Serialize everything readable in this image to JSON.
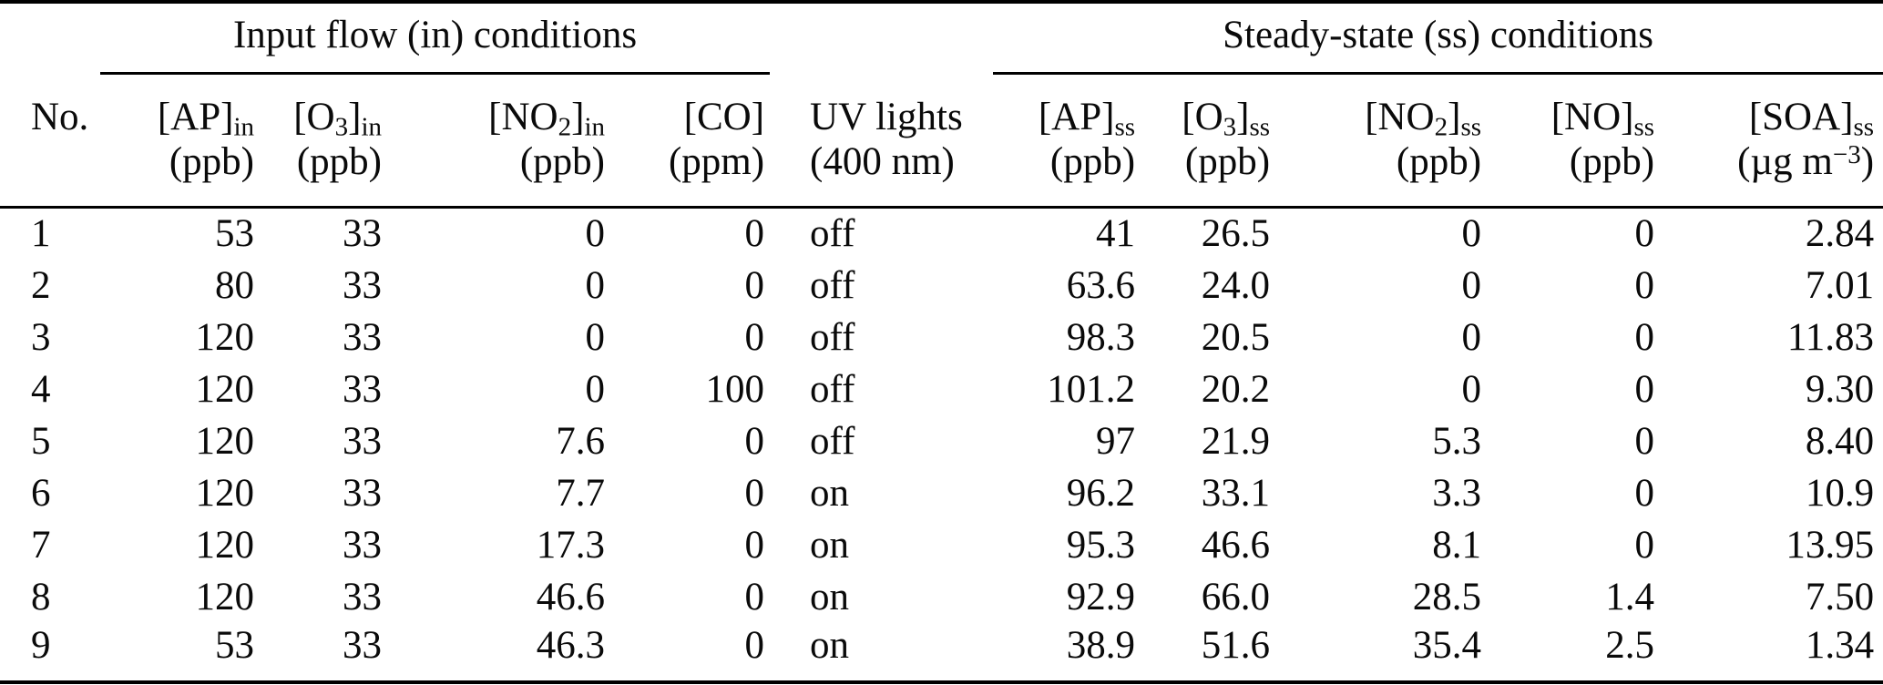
{
  "table": {
    "groups": {
      "input": "Input flow (in) conditions",
      "steady": "Steady-state (ss) conditions"
    },
    "columns": [
      {
        "id": "no",
        "align": "left",
        "group": null,
        "label_parts": [
          {
            "t": "No."
          }
        ],
        "unit_parts": []
      },
      {
        "id": "ap-in",
        "align": "right",
        "group": "input",
        "label_parts": [
          {
            "t": "[AP]"
          },
          {
            "t": "in",
            "sub": true
          }
        ],
        "unit_parts": [
          {
            "t": "(ppb)"
          }
        ]
      },
      {
        "id": "o3-in",
        "align": "right",
        "group": "input",
        "label_parts": [
          {
            "t": "[O"
          },
          {
            "t": "3",
            "sub": true
          },
          {
            "t": "]"
          },
          {
            "t": "in",
            "sub": true
          }
        ],
        "unit_parts": [
          {
            "t": "(ppb)"
          }
        ]
      },
      {
        "id": "no2-in",
        "align": "right",
        "group": "input",
        "label_parts": [
          {
            "t": "[NO"
          },
          {
            "t": "2",
            "sub": true
          },
          {
            "t": "]"
          },
          {
            "t": "in",
            "sub": true
          }
        ],
        "unit_parts": [
          {
            "t": "(ppb)"
          }
        ]
      },
      {
        "id": "co",
        "align": "right",
        "group": "input",
        "label_parts": [
          {
            "t": "[CO]"
          }
        ],
        "unit_parts": [
          {
            "t": "(ppm)"
          }
        ]
      },
      {
        "id": "uv-lights",
        "align": "left",
        "group": null,
        "label_parts": [
          {
            "t": "UV lights"
          }
        ],
        "unit_parts": [
          {
            "t": "(400 nm)"
          }
        ]
      },
      {
        "id": "ap-ss",
        "align": "right",
        "group": "steady",
        "label_parts": [
          {
            "t": "[AP]"
          },
          {
            "t": "ss",
            "sub": true
          }
        ],
        "unit_parts": [
          {
            "t": "(ppb)"
          }
        ]
      },
      {
        "id": "o3-ss",
        "align": "right",
        "group": "steady",
        "label_parts": [
          {
            "t": "[O"
          },
          {
            "t": "3",
            "sub": true
          },
          {
            "t": "]"
          },
          {
            "t": "ss",
            "sub": true
          }
        ],
        "unit_parts": [
          {
            "t": "(ppb)"
          }
        ]
      },
      {
        "id": "no2-ss",
        "align": "right",
        "group": "steady",
        "label_parts": [
          {
            "t": "[NO"
          },
          {
            "t": "2",
            "sub": true
          },
          {
            "t": "]"
          },
          {
            "t": "ss",
            "sub": true
          }
        ],
        "unit_parts": [
          {
            "t": "(ppb)"
          }
        ]
      },
      {
        "id": "no-ss",
        "align": "right",
        "group": "steady",
        "label_parts": [
          {
            "t": "[NO]"
          },
          {
            "t": "ss",
            "sub": true
          }
        ],
        "unit_parts": [
          {
            "t": "(ppb)"
          }
        ]
      },
      {
        "id": "soa-ss",
        "align": "right",
        "group": "steady",
        "label_parts": [
          {
            "t": "[SOA]"
          },
          {
            "t": "ss",
            "sub": true
          }
        ],
        "unit_parts": [
          {
            "t": "(µg m"
          },
          {
            "t": "−3",
            "sup": true
          },
          {
            "t": ")"
          }
        ]
      }
    ],
    "rows": [
      [
        "1",
        "53",
        "33",
        "0",
        "0",
        "off",
        "41",
        "26.5",
        "0",
        "0",
        "2.84"
      ],
      [
        "2",
        "80",
        "33",
        "0",
        "0",
        "off",
        "63.6",
        "24.0",
        "0",
        "0",
        "7.01"
      ],
      [
        "3",
        "120",
        "33",
        "0",
        "0",
        "off",
        "98.3",
        "20.5",
        "0",
        "0",
        "11.83"
      ],
      [
        "4",
        "120",
        "33",
        "0",
        "100",
        "off",
        "101.2",
        "20.2",
        "0",
        "0",
        "9.30"
      ],
      [
        "5",
        "120",
        "33",
        "7.6",
        "0",
        "off",
        "97",
        "21.9",
        "5.3",
        "0",
        "8.40"
      ],
      [
        "6",
        "120",
        "33",
        "7.7",
        "0",
        "on",
        "96.2",
        "33.1",
        "3.3",
        "0",
        "10.9"
      ],
      [
        "7",
        "120",
        "33",
        "17.3",
        "0",
        "on",
        "95.3",
        "46.6",
        "8.1",
        "0",
        "13.95"
      ],
      [
        "8",
        "120",
        "33",
        "46.6",
        "0",
        "on",
        "92.9",
        "66.0",
        "28.5",
        "1.4",
        "7.50"
      ],
      [
        "9",
        "53",
        "33",
        "46.3",
        "0",
        "on",
        "38.9",
        "51.6",
        "35.4",
        "2.5",
        "1.34"
      ]
    ]
  }
}
